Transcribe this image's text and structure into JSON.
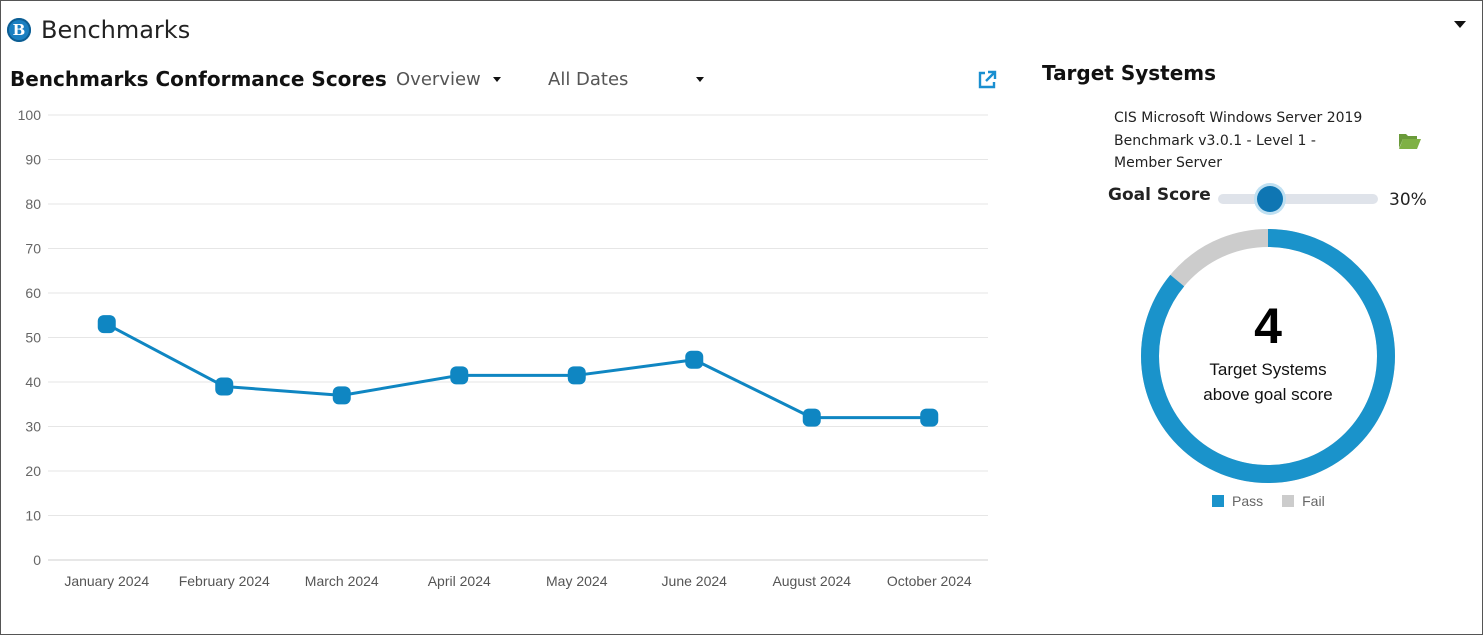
{
  "header": {
    "logo_letter": "B",
    "title": "Benchmarks"
  },
  "chart_panel": {
    "title": "Benchmarks Conformance Scores",
    "view_dropdown": "Overview",
    "date_dropdown": "All Dates"
  },
  "chart_data": {
    "type": "line",
    "categories": [
      "January 2024",
      "February 2024",
      "March 2024",
      "April 2024",
      "May 2024",
      "June 2024",
      "August 2024",
      "October 2024"
    ],
    "values": [
      53,
      39,
      37,
      41.5,
      41.5,
      45,
      32,
      32
    ],
    "ylim": [
      0,
      100
    ],
    "yticks": [
      0,
      10,
      20,
      30,
      40,
      50,
      60,
      70,
      80,
      90,
      100
    ],
    "grid": true,
    "color": "#0f86c2"
  },
  "target_systems": {
    "title": "Target Systems",
    "benchmark_name": "CIS Microsoft Windows Server 2019 Benchmark v3.0.1 - Level 1 - Member Server",
    "goal_label": "Goal Score",
    "goal_value": "30%",
    "goal_fraction": 0.3,
    "count": "4",
    "caption_line1": "Target Systems",
    "caption_line2": "above goal score",
    "pass_fraction": 0.86,
    "pass_color": "#1a93cb",
    "fail_color": "#cccccc",
    "legend_pass": "Pass",
    "legend_fail": "Fail"
  }
}
